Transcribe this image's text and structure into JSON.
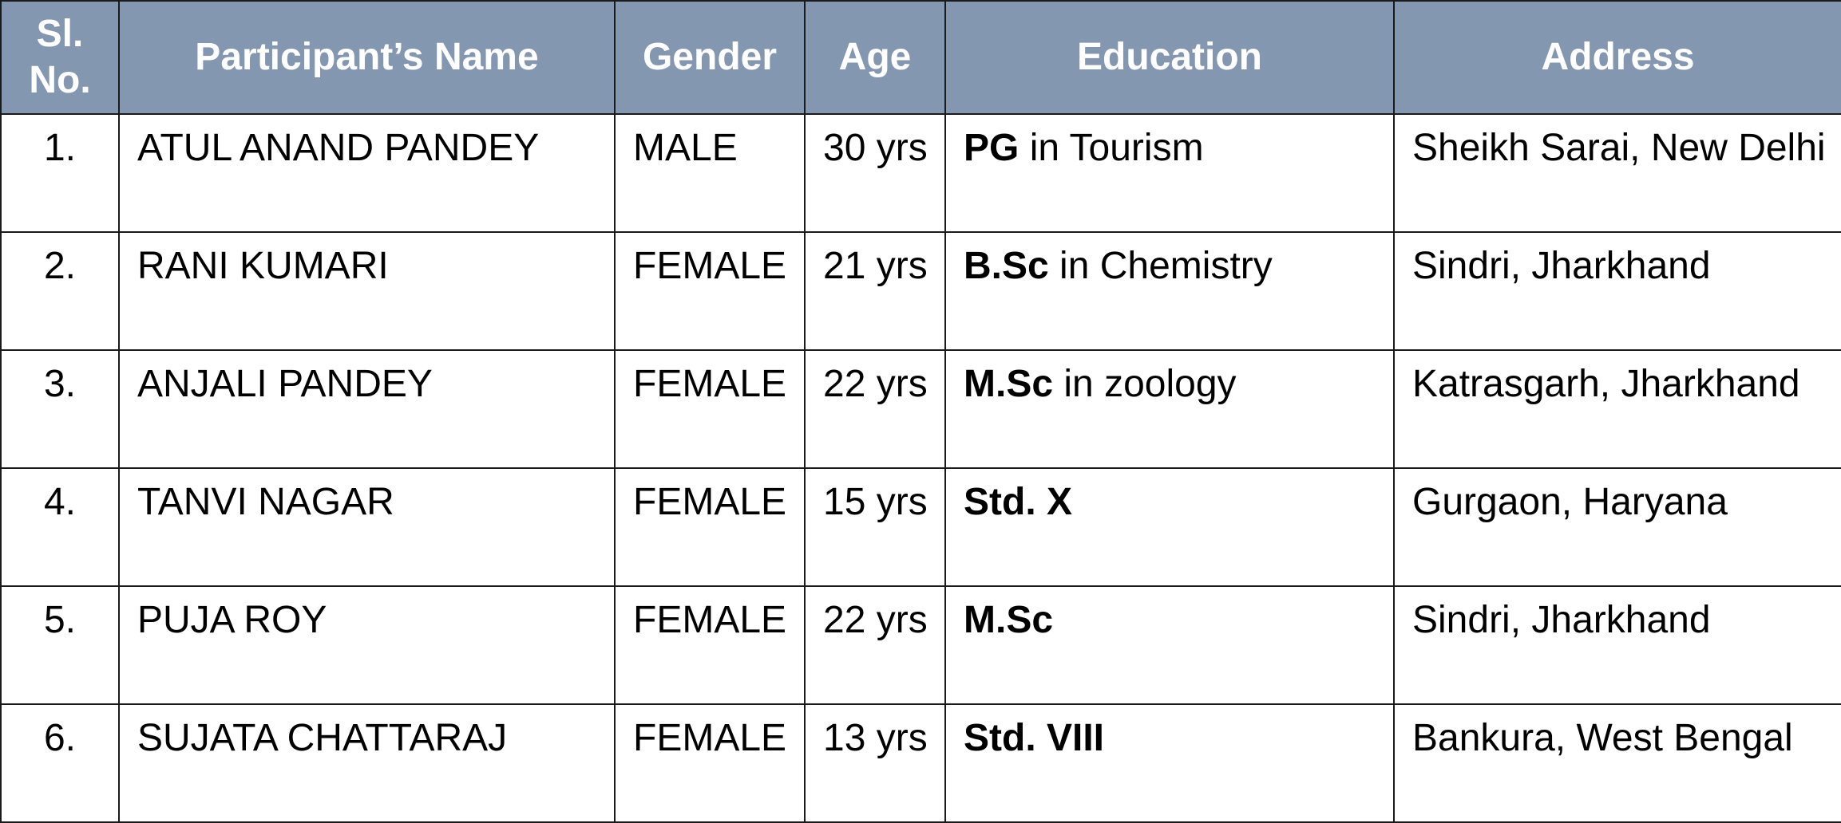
{
  "table": {
    "headers": {
      "sl": "Sl.\nNo.",
      "name": "Participant’s Name",
      "gender": "Gender",
      "age": "Age",
      "education": "Education",
      "address": "Address"
    },
    "header_color": "#8497b0",
    "rows": [
      {
        "sl": "1.",
        "name": "ATUL ANAND PANDEY",
        "gender": "MALE",
        "age": "30 yrs",
        "education_bold": "PG",
        "education_rest": " in Tourism",
        "address": "Sheikh Sarai, New Delhi"
      },
      {
        "sl": "2.",
        "name": "RANI KUMARI",
        "gender": "FEMALE",
        "age": "21 yrs",
        "education_bold": "B.Sc",
        "education_rest": " in Chemistry",
        "address": "Sindri, Jharkhand"
      },
      {
        "sl": "3.",
        "name": "ANJALI PANDEY",
        "gender": "FEMALE",
        "age": "22 yrs",
        "education_bold": "M.Sc",
        "education_rest": " in zoology",
        "address": "Katrasgarh, Jharkhand"
      },
      {
        "sl": "4.",
        "name": "TANVI NAGAR",
        "gender": "FEMALE",
        "age": "15 yrs",
        "education_bold": "Std. X",
        "education_rest": "",
        "address": "Gurgaon, Haryana"
      },
      {
        "sl": "5.",
        "name": "PUJA ROY",
        "gender": "FEMALE",
        "age": "22 yrs",
        "education_bold": "M.Sc",
        "education_rest": "",
        "address": "Sindri, Jharkhand"
      },
      {
        "sl": "6.",
        "name": "SUJATA CHATTARAJ",
        "gender": "FEMALE",
        "age": "13 yrs",
        "education_bold": "Std. VIII",
        "education_rest": "",
        "address": "Bankura, West Bengal"
      }
    ]
  }
}
